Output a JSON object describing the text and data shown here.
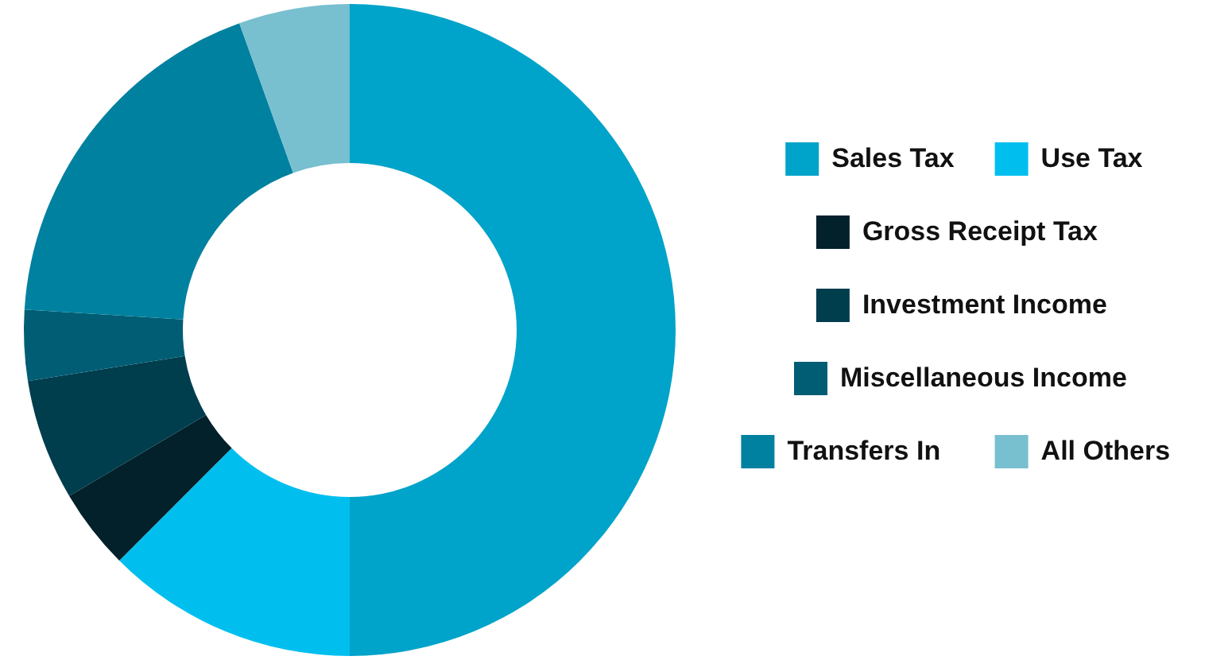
{
  "chart_data": {
    "type": "donut",
    "categories": [
      "Sales Tax",
      "Use Tax",
      "Gross Receipt Tax",
      "Investment Income",
      "Miscellaneous Income",
      "Transfers In",
      "All Others"
    ],
    "values": [
      50,
      12.5,
      4,
      6,
      3.5,
      18.5,
      5.5
    ],
    "colors": [
      "#00a3c9",
      "#00bfef",
      "#02212b",
      "#003d4d",
      "#005d73",
      "#00819f",
      "#78bfd0"
    ],
    "legend": "right"
  }
}
